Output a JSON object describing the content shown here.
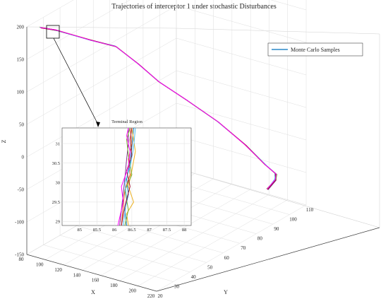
{
  "chart_data": {
    "type": "line",
    "projection": "3d",
    "title": "Trajectories of interceptor 1 under stochastic Disturbances",
    "xlabel": "X",
    "ylabel": "Y",
    "zlabel": "Z",
    "xlim": [
      80,
      220
    ],
    "ylim": [
      20,
      110
    ],
    "zlim": [
      -150,
      200
    ],
    "x_ticks": [
      "80",
      "100",
      "120",
      "140",
      "160",
      "180",
      "200",
      "220"
    ],
    "y_ticks": [
      "20",
      "30",
      "40",
      "50",
      "60",
      "70",
      "80",
      "90",
      "100",
      "110"
    ],
    "z_ticks": [
      "-150",
      "-100",
      "-50",
      "0",
      "50",
      "100",
      "150",
      "200"
    ],
    "grid": true,
    "legend": {
      "position": "top-right",
      "entries": [
        "Monte Carlo Samples"
      ]
    },
    "series": [
      {
        "name": "Monte Carlo Samples",
        "sample_count": 8,
        "colors": [
          "#0072bd",
          "#d95319",
          "#edb120",
          "#7e2f8e",
          "#77ac30",
          "#4dbeee",
          "#a2142f",
          "#ff00ff"
        ],
        "mean_path": [
          {
            "x": 86.3,
            "y": 24.5,
            "z": 195
          },
          {
            "x": 96,
            "y": 29,
            "z": 188
          },
          {
            "x": 118,
            "y": 37,
            "z": 170
          },
          {
            "x": 135,
            "y": 43,
            "z": 158
          },
          {
            "x": 148,
            "y": 49,
            "z": 128
          },
          {
            "x": 160,
            "y": 55,
            "z": 96
          },
          {
            "x": 172,
            "y": 65,
            "z": 58
          },
          {
            "x": 182,
            "y": 78,
            "z": 10
          },
          {
            "x": 190,
            "y": 90,
            "z": -40
          },
          {
            "x": 196,
            "y": 99,
            "z": -82
          },
          {
            "x": 200,
            "y": 103,
            "z": -100
          },
          {
            "x": 203,
            "y": 101,
            "z": -105
          },
          {
            "x": 205,
            "y": 95,
            "z": -110
          }
        ]
      }
    ],
    "inset": {
      "title": "Terminal Region",
      "x_range": [
        84.5,
        88.2
      ],
      "z_range": [
        28.9,
        31.4
      ],
      "x_ticks": [
        "85",
        "85.5",
        "86",
        "86.5",
        "87",
        "87.5",
        "88"
      ],
      "z_ticks": [
        "29",
        "29.5",
        "30",
        "30.5",
        "31"
      ],
      "lines": [
        {
          "color": "#0072bd",
          "points": [
            [
              86.35,
              28.9
            ],
            [
              86.3,
              29.3
            ],
            [
              86.4,
              29.7
            ],
            [
              86.35,
              30.1
            ],
            [
              86.45,
              30.5
            ],
            [
              86.5,
              30.9
            ],
            [
              86.55,
              31.4
            ]
          ]
        },
        {
          "color": "#d95319",
          "points": [
            [
              86.2,
              28.9
            ],
            [
              86.25,
              29.4
            ],
            [
              86.3,
              29.8
            ],
            [
              86.45,
              30.2
            ],
            [
              86.4,
              30.6
            ],
            [
              86.5,
              31.0
            ],
            [
              86.45,
              31.4
            ]
          ]
        },
        {
          "color": "#edb120",
          "points": [
            [
              86.4,
              28.9
            ],
            [
              86.35,
              29.2
            ],
            [
              86.55,
              29.5
            ],
            [
              86.4,
              29.9
            ],
            [
              86.5,
              30.3
            ],
            [
              86.6,
              30.8
            ],
            [
              86.5,
              31.4
            ]
          ]
        },
        {
          "color": "#7e2f8e",
          "points": [
            [
              86.15,
              28.9
            ],
            [
              86.2,
              29.3
            ],
            [
              86.25,
              29.7
            ],
            [
              86.3,
              30.1
            ],
            [
              86.35,
              30.6
            ],
            [
              86.4,
              31.0
            ],
            [
              86.4,
              31.4
            ]
          ]
        },
        {
          "color": "#77ac30",
          "points": [
            [
              86.3,
              28.9
            ],
            [
              86.4,
              29.3
            ],
            [
              86.3,
              29.8
            ],
            [
              86.5,
              30.2
            ],
            [
              86.4,
              30.7
            ],
            [
              86.35,
              31.1
            ],
            [
              86.45,
              31.4
            ]
          ]
        },
        {
          "color": "#4dbeee",
          "points": [
            [
              86.25,
              28.9
            ],
            [
              86.3,
              29.2
            ],
            [
              86.35,
              29.6
            ],
            [
              86.3,
              30.0
            ],
            [
              86.45,
              30.4
            ],
            [
              86.55,
              30.9
            ],
            [
              86.6,
              31.4
            ]
          ]
        },
        {
          "color": "#a2142f",
          "points": [
            [
              86.2,
              28.9
            ],
            [
              86.3,
              29.4
            ],
            [
              86.45,
              29.9
            ],
            [
              86.35,
              30.3
            ],
            [
              86.5,
              30.7
            ],
            [
              86.45,
              31.1
            ],
            [
              86.5,
              31.4
            ]
          ]
        },
        {
          "color": "#ff00ff",
          "points": [
            [
              86.1,
              28.9
            ],
            [
              86.25,
              29.5
            ],
            [
              86.2,
              29.9
            ],
            [
              86.4,
              30.4
            ],
            [
              86.45,
              30.8
            ],
            [
              86.35,
              31.2
            ],
            [
              86.4,
              31.4
            ]
          ]
        }
      ]
    }
  }
}
